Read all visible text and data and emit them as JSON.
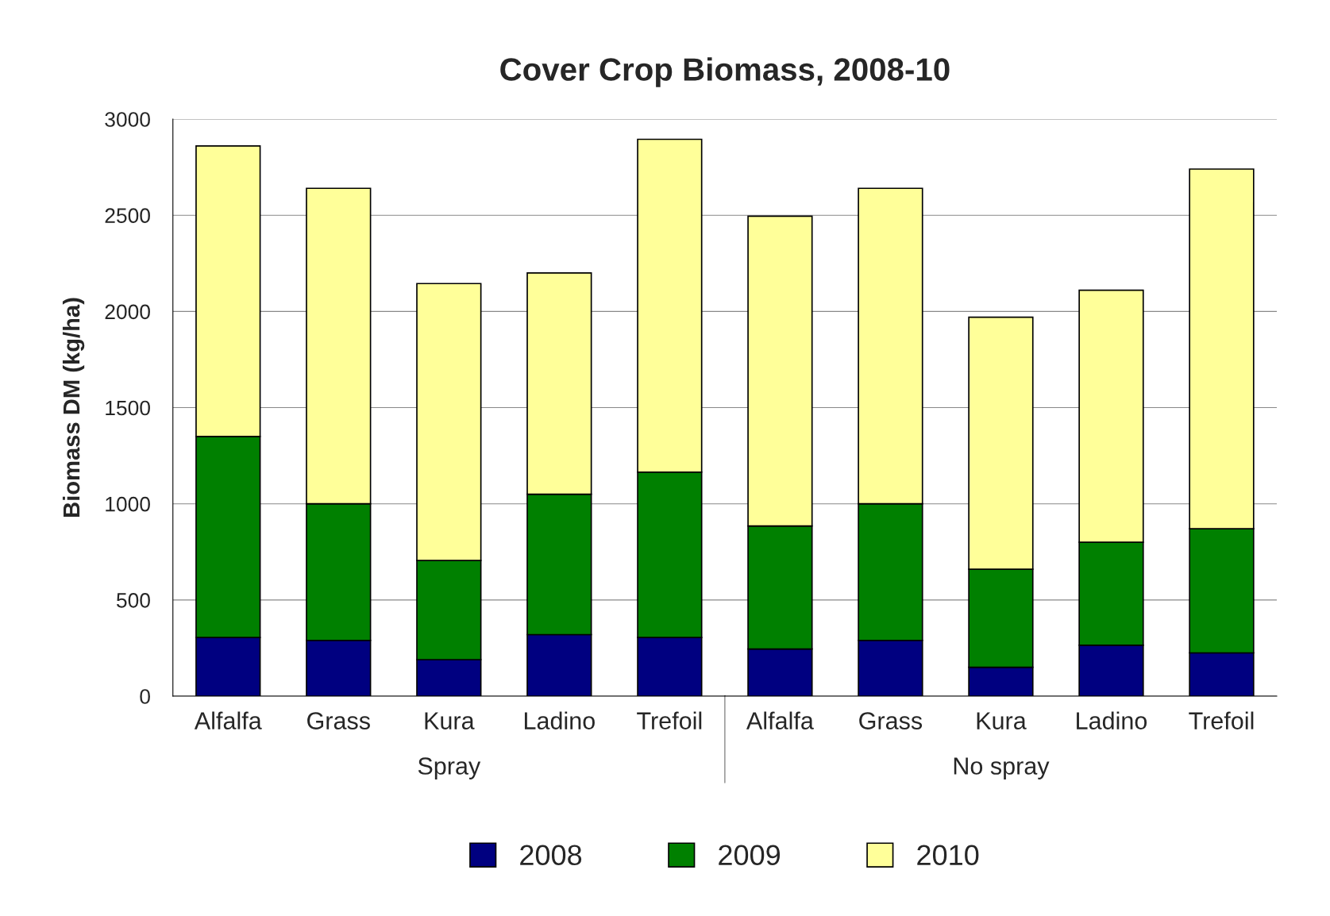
{
  "chart_data": {
    "type": "bar",
    "title": "Cover Crop Biomass, 2008-10",
    "ylabel": "Biomass DM (kg/ha)",
    "categories": [
      "Alfalfa",
      "Grass",
      "Kura",
      "Ladino",
      "Trefoil",
      "Alfalfa",
      "Grass",
      "Kura",
      "Ladino",
      "Trefoil"
    ],
    "stacked": true,
    "series": [
      {
        "name": "2008",
        "color": "#000080",
        "values": [
          305,
          290,
          190,
          320,
          305,
          245,
          290,
          150,
          265,
          225
        ]
      },
      {
        "name": "2009",
        "color": "#008000",
        "values": [
          1045,
          710,
          515,
          730,
          860,
          640,
          710,
          510,
          535,
          645
        ]
      },
      {
        "name": "2010",
        "color": "#ffff99",
        "values": [
          1510,
          1640,
          1440,
          1150,
          1730,
          1610,
          1640,
          1310,
          1310,
          1870
        ]
      }
    ],
    "ylim": [
      0,
      3000
    ],
    "yticks": [
      0,
      500,
      1000,
      1500,
      2000,
      2500,
      3000
    ],
    "grid": "y",
    "legend": "bottom",
    "annotations": [
      "Spray",
      "No spray"
    ]
  }
}
